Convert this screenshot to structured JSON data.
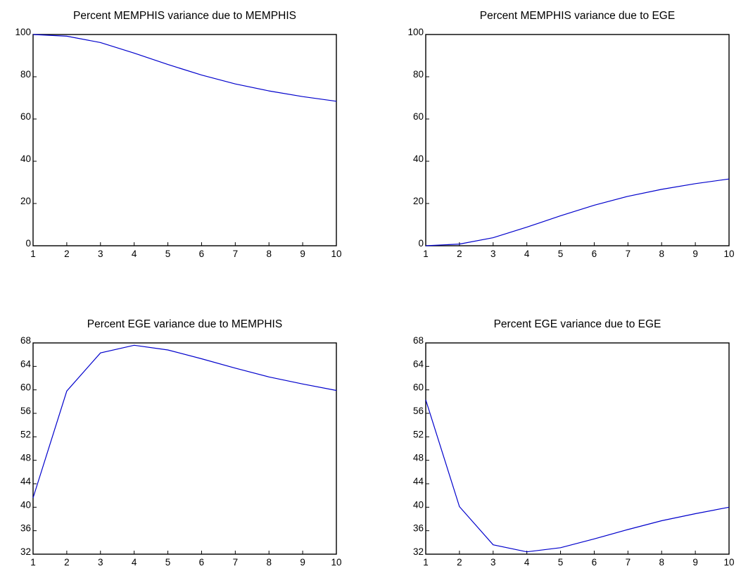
{
  "chart_data": [
    {
      "type": "line",
      "title": "Percent MEMPHIS variance due to MEMPHIS",
      "x": [
        1,
        2,
        3,
        4,
        5,
        6,
        7,
        8,
        9,
        10
      ],
      "series": [
        {
          "values": [
            100,
            99.2,
            96.2,
            91.2,
            85.8,
            80.8,
            76.6,
            73.3,
            70.6,
            68.4
          ]
        }
      ],
      "xticks": [
        "1",
        "2",
        "3",
        "4",
        "5",
        "6",
        "7",
        "8",
        "9",
        "10"
      ],
      "yticks": [
        "0",
        "20",
        "40",
        "60",
        "80",
        "100"
      ],
      "xlim": [
        1,
        10
      ],
      "ylim": [
        0,
        100
      ],
      "color": "#0000cc",
      "grid": false
    },
    {
      "type": "line",
      "title": "Percent MEMPHIS variance due to EGE",
      "x": [
        1,
        2,
        3,
        4,
        5,
        6,
        7,
        8,
        9,
        10
      ],
      "series": [
        {
          "values": [
            0,
            0.8,
            3.8,
            8.8,
            14.2,
            19.2,
            23.4,
            26.7,
            29.4,
            31.6
          ]
        }
      ],
      "xticks": [
        "1",
        "2",
        "3",
        "4",
        "5",
        "6",
        "7",
        "8",
        "9",
        "10"
      ],
      "yticks": [
        "0",
        "20",
        "40",
        "60",
        "80",
        "100"
      ],
      "xlim": [
        1,
        10
      ],
      "ylim": [
        0,
        100
      ],
      "color": "#0000cc",
      "grid": false
    },
    {
      "type": "line",
      "title": "Percent EGE variance due to MEMPHIS",
      "x": [
        1,
        2,
        3,
        4,
        5,
        6,
        7,
        8,
        9,
        10
      ],
      "series": [
        {
          "values": [
            41.6,
            59.8,
            66.3,
            67.6,
            66.8,
            65.3,
            63.7,
            62.2,
            61.0,
            59.9
          ]
        }
      ],
      "xticks": [
        "1",
        "2",
        "3",
        "4",
        "5",
        "6",
        "7",
        "8",
        "9",
        "10"
      ],
      "yticks": [
        "32",
        "36",
        "40",
        "44",
        "48",
        "52",
        "56",
        "60",
        "64",
        "68"
      ],
      "xlim": [
        1,
        10
      ],
      "ylim": [
        32,
        68
      ],
      "color": "#0000cc",
      "grid": false
    },
    {
      "type": "line",
      "title": "Percent EGE variance due to EGE",
      "x": [
        1,
        2,
        3,
        4,
        5,
        6,
        7,
        8,
        9,
        10
      ],
      "series": [
        {
          "values": [
            58.3,
            40.1,
            33.6,
            32.4,
            33.1,
            34.6,
            36.2,
            37.7,
            38.9,
            40.0
          ]
        }
      ],
      "xticks": [
        "1",
        "2",
        "3",
        "4",
        "5",
        "6",
        "7",
        "8",
        "9",
        "10"
      ],
      "yticks": [
        "32",
        "36",
        "40",
        "44",
        "48",
        "52",
        "56",
        "60",
        "64",
        "68"
      ],
      "xlim": [
        1,
        10
      ],
      "ylim": [
        32,
        68
      ],
      "color": "#0000cc",
      "grid": false
    }
  ]
}
